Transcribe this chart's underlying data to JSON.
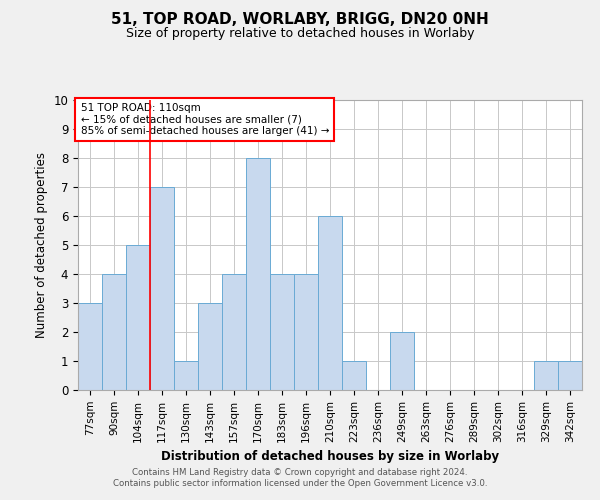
{
  "title1": "51, TOP ROAD, WORLABY, BRIGG, DN20 0NH",
  "title2": "Size of property relative to detached houses in Worlaby",
  "xlabel": "Distribution of detached houses by size in Worlaby",
  "ylabel": "Number of detached properties",
  "categories": [
    "77sqm",
    "90sqm",
    "104sqm",
    "117sqm",
    "130sqm",
    "143sqm",
    "157sqm",
    "170sqm",
    "183sqm",
    "196sqm",
    "210sqm",
    "223sqm",
    "236sqm",
    "249sqm",
    "263sqm",
    "276sqm",
    "289sqm",
    "302sqm",
    "316sqm",
    "329sqm",
    "342sqm"
  ],
  "values": [
    3,
    4,
    5,
    7,
    1,
    3,
    4,
    8,
    4,
    4,
    6,
    1,
    0,
    2,
    0,
    0,
    0,
    0,
    0,
    1,
    1
  ],
  "bar_color": "#c8d9ee",
  "bar_edge_color": "#6aaad4",
  "red_line_x": 2.5,
  "annotation_text": "51 TOP ROAD: 110sqm\n← 15% of detached houses are smaller (7)\n85% of semi-detached houses are larger (41) →",
  "ylim": [
    0,
    10
  ],
  "yticks": [
    0,
    1,
    2,
    3,
    4,
    5,
    6,
    7,
    8,
    9,
    10
  ],
  "footnote": "Contains HM Land Registry data © Crown copyright and database right 2024.\nContains public sector information licensed under the Open Government Licence v3.0.",
  "bg_color": "#f0f0f0",
  "plot_bg_color": "white",
  "grid_color": "#c8c8c8",
  "title_fontsize": 11,
  "subtitle_fontsize": 9
}
